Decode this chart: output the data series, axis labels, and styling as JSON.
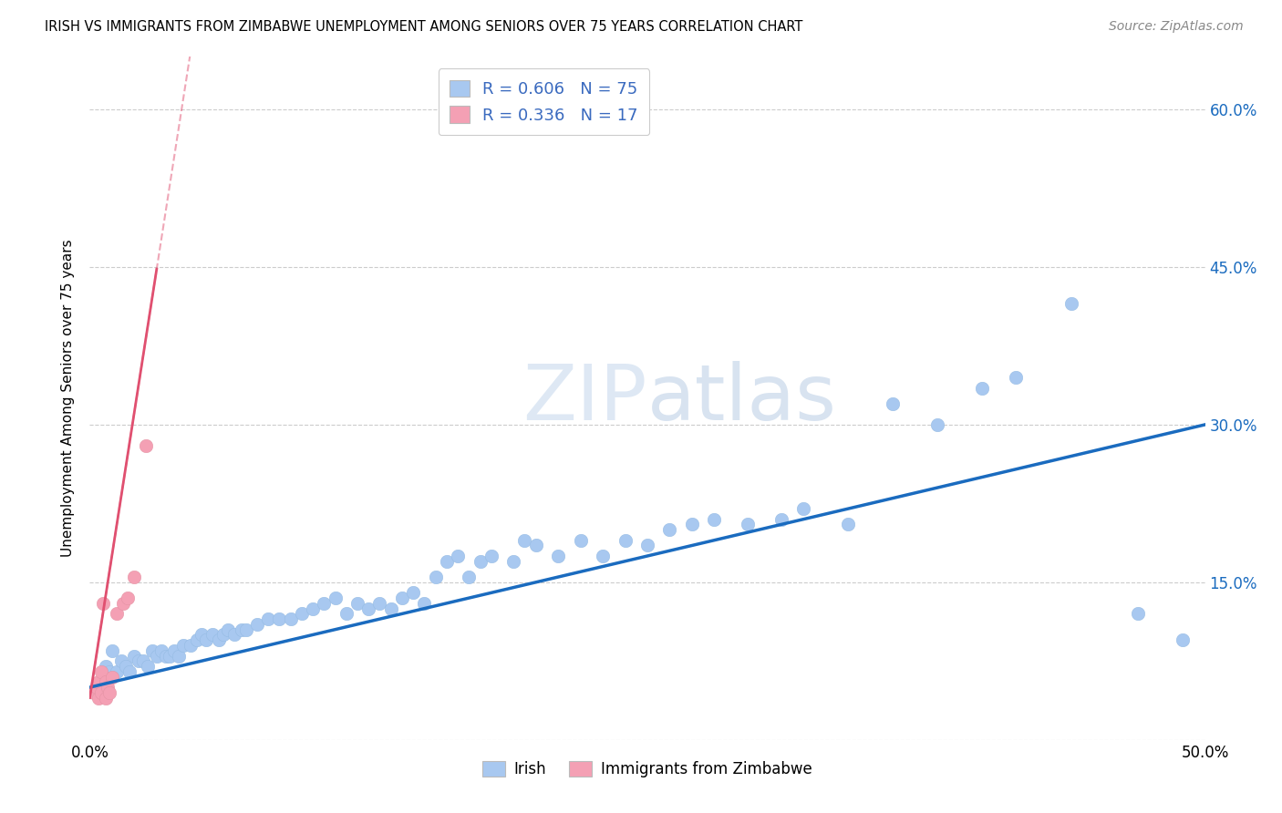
{
  "title": "IRISH VS IMMIGRANTS FROM ZIMBABWE UNEMPLOYMENT AMONG SENIORS OVER 75 YEARS CORRELATION CHART",
  "source": "Source: ZipAtlas.com",
  "ylabel": "Unemployment Among Seniors over 75 years",
  "xlim": [
    0.0,
    0.5
  ],
  "ylim": [
    0.0,
    0.65
  ],
  "xticks": [
    0.0,
    0.05,
    0.1,
    0.15,
    0.2,
    0.25,
    0.3,
    0.35,
    0.4,
    0.45,
    0.5
  ],
  "yticks": [
    0.0,
    0.15,
    0.3,
    0.45,
    0.6
  ],
  "legend_r_irish": "0.606",
  "legend_n_irish": "75",
  "legend_r_zim": "0.336",
  "legend_n_zim": "17",
  "irish_color": "#a8c8f0",
  "zim_color": "#f4a0b4",
  "irish_line_color": "#1a6bbf",
  "zim_line_color": "#e05070",
  "watermark": "ZIPatlas",
  "irish_x": [
    0.005,
    0.007,
    0.009,
    0.01,
    0.012,
    0.014,
    0.016,
    0.018,
    0.02,
    0.022,
    0.024,
    0.026,
    0.028,
    0.03,
    0.032,
    0.034,
    0.036,
    0.038,
    0.04,
    0.042,
    0.045,
    0.048,
    0.05,
    0.052,
    0.055,
    0.058,
    0.06,
    0.062,
    0.065,
    0.068,
    0.07,
    0.075,
    0.08,
    0.085,
    0.09,
    0.095,
    0.1,
    0.105,
    0.11,
    0.115,
    0.12,
    0.125,
    0.13,
    0.135,
    0.14,
    0.145,
    0.15,
    0.155,
    0.16,
    0.165,
    0.17,
    0.175,
    0.18,
    0.19,
    0.195,
    0.2,
    0.21,
    0.22,
    0.23,
    0.24,
    0.25,
    0.26,
    0.27,
    0.28,
    0.295,
    0.31,
    0.32,
    0.34,
    0.36,
    0.38,
    0.4,
    0.415,
    0.44,
    0.47,
    0.49
  ],
  "irish_y": [
    0.055,
    0.07,
    0.065,
    0.085,
    0.065,
    0.075,
    0.07,
    0.065,
    0.08,
    0.075,
    0.075,
    0.07,
    0.085,
    0.08,
    0.085,
    0.08,
    0.08,
    0.085,
    0.08,
    0.09,
    0.09,
    0.095,
    0.1,
    0.095,
    0.1,
    0.095,
    0.1,
    0.105,
    0.1,
    0.105,
    0.105,
    0.11,
    0.115,
    0.115,
    0.115,
    0.12,
    0.125,
    0.13,
    0.135,
    0.12,
    0.13,
    0.125,
    0.13,
    0.125,
    0.135,
    0.14,
    0.13,
    0.155,
    0.17,
    0.175,
    0.155,
    0.17,
    0.175,
    0.17,
    0.19,
    0.185,
    0.175,
    0.19,
    0.175,
    0.19,
    0.185,
    0.2,
    0.205,
    0.21,
    0.205,
    0.21,
    0.22,
    0.205,
    0.32,
    0.3,
    0.335,
    0.345,
    0.415,
    0.12,
    0.095
  ],
  "zim_x": [
    0.002,
    0.003,
    0.004,
    0.004,
    0.005,
    0.005,
    0.006,
    0.007,
    0.007,
    0.008,
    0.009,
    0.01,
    0.012,
    0.015,
    0.017,
    0.02,
    0.025
  ],
  "zim_y": [
    0.045,
    0.05,
    0.055,
    0.04,
    0.065,
    0.045,
    0.13,
    0.055,
    0.04,
    0.05,
    0.045,
    0.06,
    0.12,
    0.13,
    0.135,
    0.155,
    0.28
  ]
}
